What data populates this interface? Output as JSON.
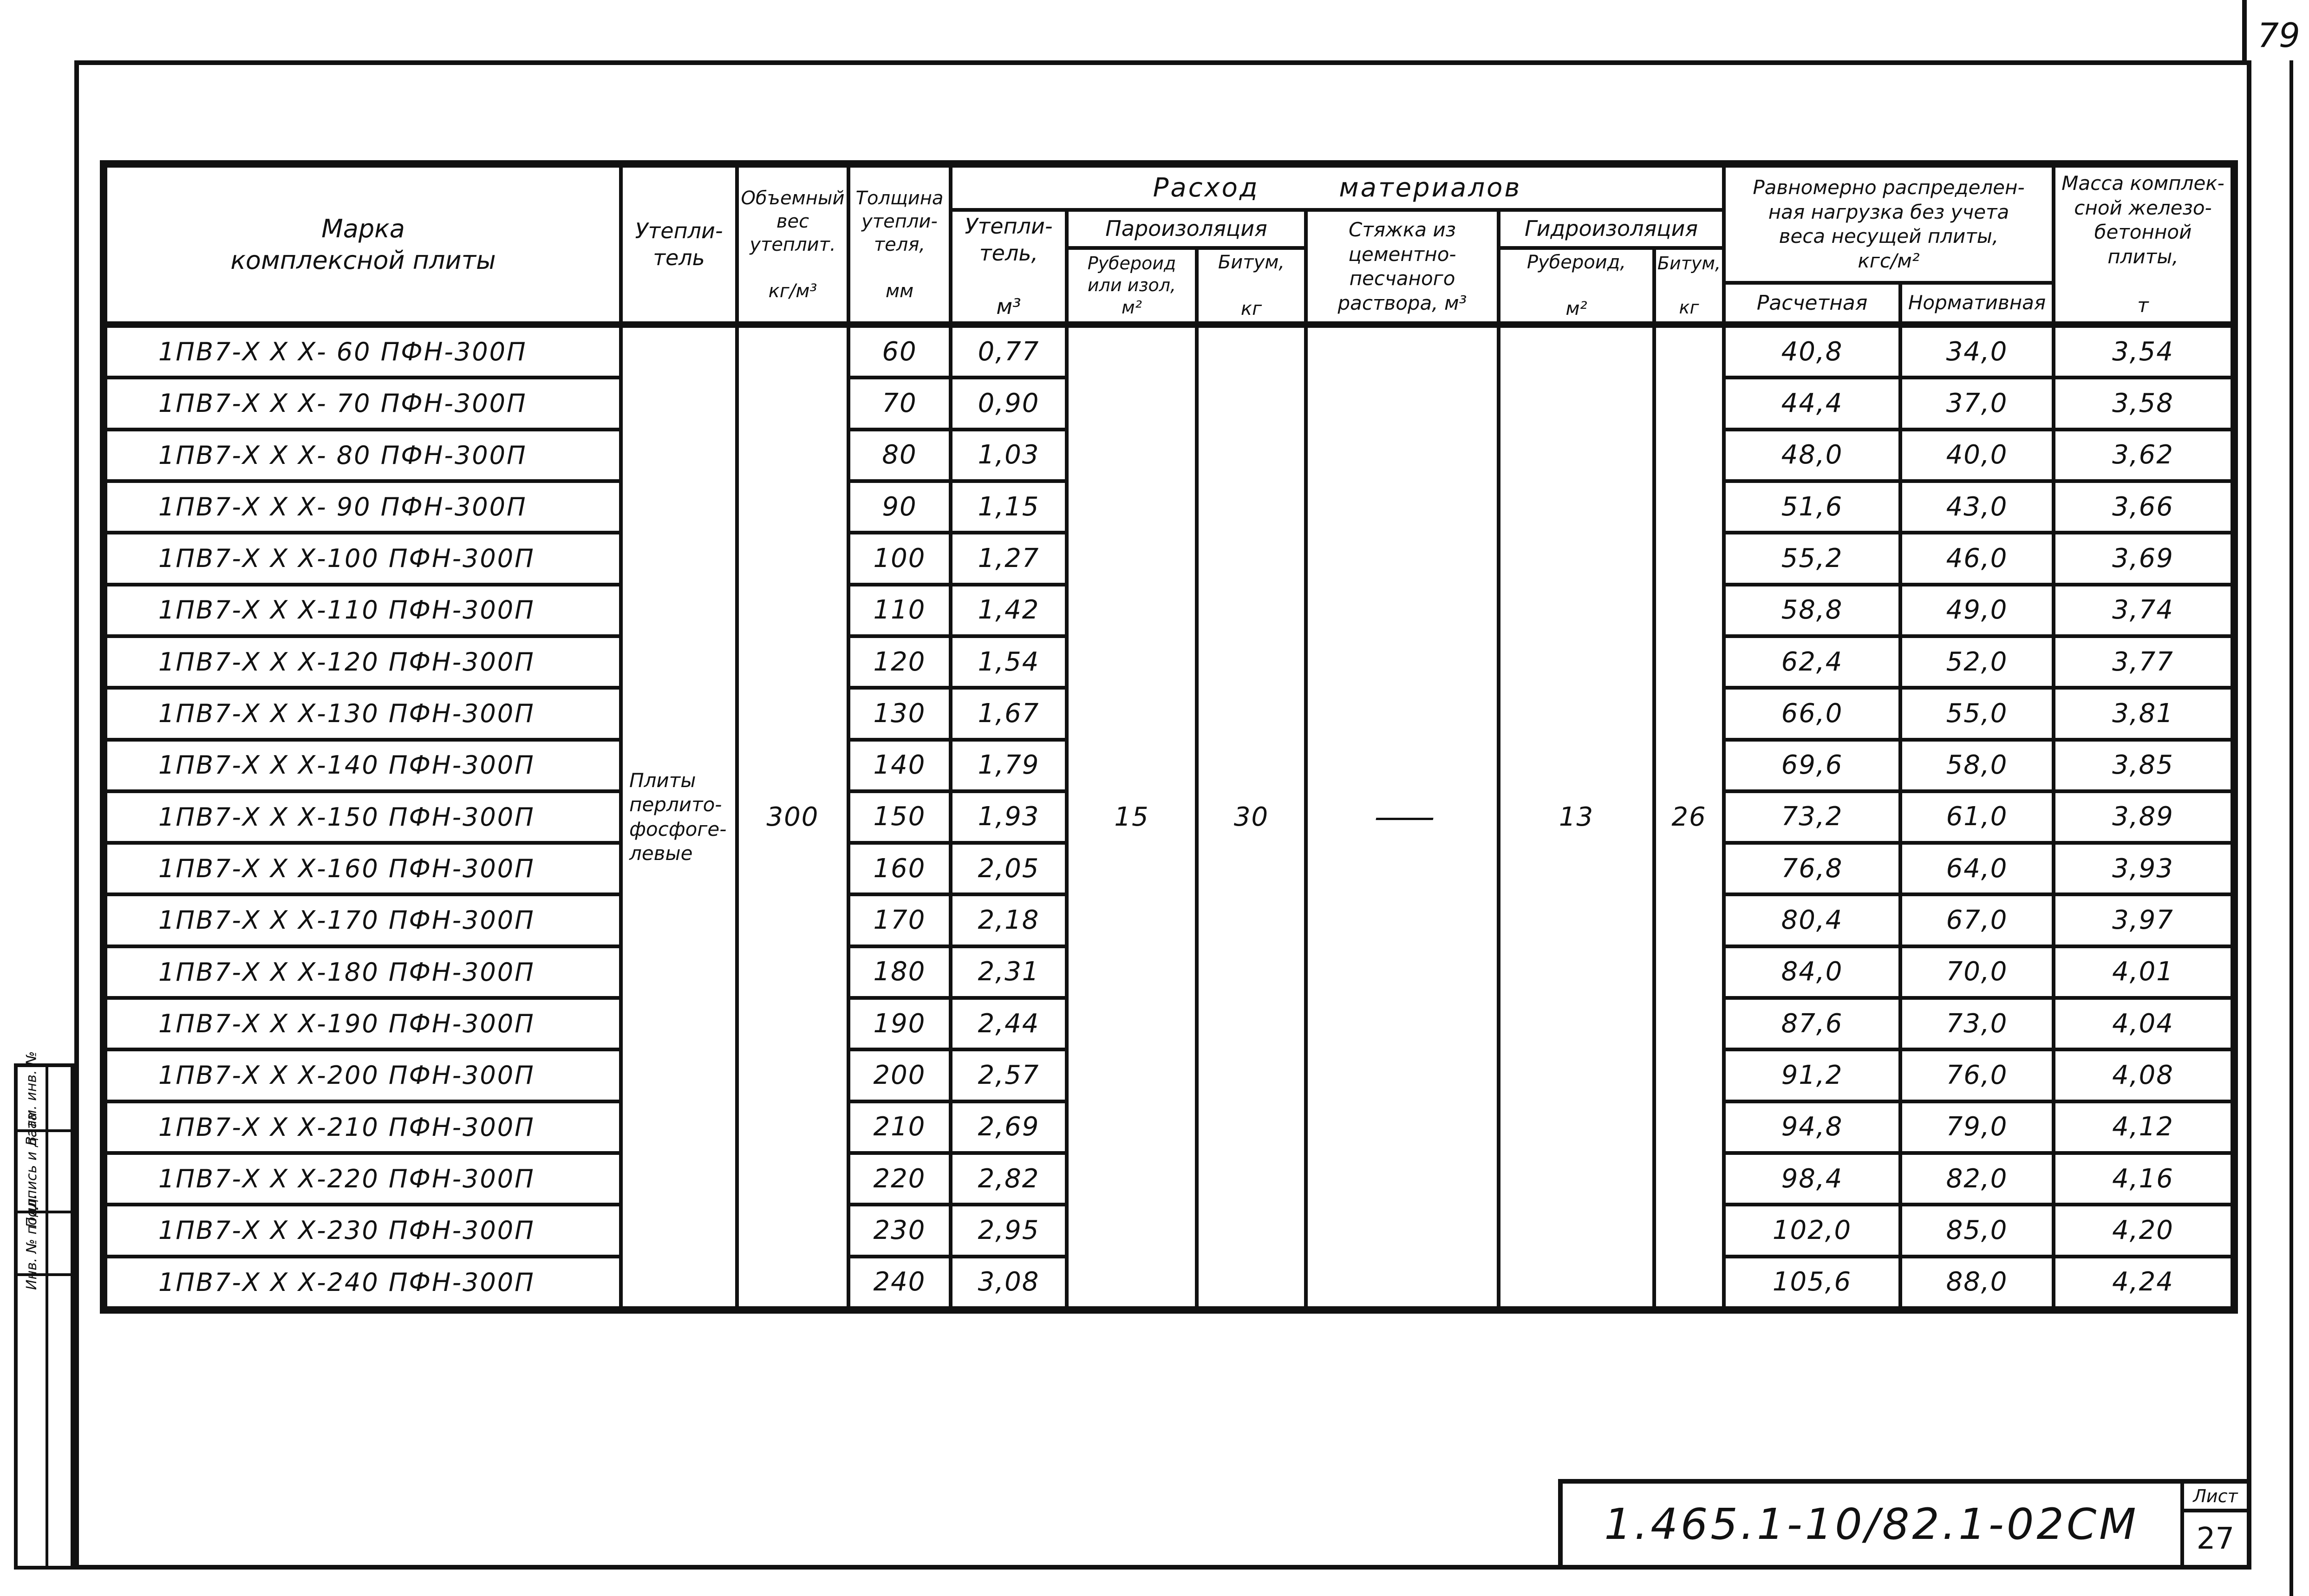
{
  "page": {
    "corner_number": "79",
    "doc_code": "1.465.1-10/82.1-02СМ",
    "sheet_label": "Лист",
    "sheet_number": "27"
  },
  "stamps": {
    "items": [
      {
        "label": "Взам. инв. №"
      },
      {
        "label": "Подпись и дата"
      },
      {
        "label": "Инв. № подл."
      }
    ]
  },
  "table": {
    "headers": {
      "mark": "Марка\nкомплексной плиты",
      "insulation": "Утепли-\nтель",
      "density": "Объемный\nвес\nутеплит.\n\nкг/м³",
      "thickness": "Толщина\nутепли-\nтеля,\n\nмм",
      "consumption": "Расход материалов",
      "insulation_volume": "Утепли-\nтель,\n\nм³",
      "vapor_barrier": "Пароизоляция",
      "ruberoid_izol": "Рубероид\nили изол,\nм²",
      "bitumen_vapor": "Битум,\n\nкг",
      "screed": "Стяжка из\nцементно-\nпесчаного\nраствора, м³",
      "waterproofing": "Гидроизоляция",
      "ruberoid": "Рубероид,\n\nм²",
      "bitumen_water": "Битум,\n\nкг",
      "load": "Равномерно распределен-\nная нагрузка без учета\nвеса несущей плиты,\nкгс/м²",
      "design": "Расчетная",
      "normative": "Нормативная",
      "mass": "Масса комплек-\nсной железо-\nбетонной\nплиты,\n\nт"
    },
    "merged": {
      "insulation_type": "Плиты\nперлито-\nфосфоге-\nлевые",
      "density": "300",
      "ruberoid_izol": "15",
      "bitumen_vapor": "30",
      "screed": "——",
      "ruberoid": "13",
      "bitumen_water": "26"
    },
    "rows": [
      {
        "mark": "1ПВ7-Х Х Х- 60 ПФН-300П",
        "thickness": "60",
        "volume": "0,77",
        "design_load": "40,8",
        "normative_load": "34,0",
        "mass": "3,54"
      },
      {
        "mark": "1ПВ7-Х Х Х- 70 ПФН-300П",
        "thickness": "70",
        "volume": "0,90",
        "design_load": "44,4",
        "normative_load": "37,0",
        "mass": "3,58"
      },
      {
        "mark": "1ПВ7-Х Х Х- 80 ПФН-300П",
        "thickness": "80",
        "volume": "1,03",
        "design_load": "48,0",
        "normative_load": "40,0",
        "mass": "3,62"
      },
      {
        "mark": "1ПВ7-Х Х Х- 90 ПФН-300П",
        "thickness": "90",
        "volume": "1,15",
        "design_load": "51,6",
        "normative_load": "43,0",
        "mass": "3,66"
      },
      {
        "mark": "1ПВ7-Х Х Х-100 ПФН-300П",
        "thickness": "100",
        "volume": "1,27",
        "design_load": "55,2",
        "normative_load": "46,0",
        "mass": "3,69"
      },
      {
        "mark": "1ПВ7-Х Х Х-110 ПФН-300П",
        "thickness": "110",
        "volume": "1,42",
        "design_load": "58,8",
        "normative_load": "49,0",
        "mass": "3,74"
      },
      {
        "mark": "1ПВ7-Х Х Х-120 ПФН-300П",
        "thickness": "120",
        "volume": "1,54",
        "design_load": "62,4",
        "normative_load": "52,0",
        "mass": "3,77"
      },
      {
        "mark": "1ПВ7-Х Х Х-130 ПФН-300П",
        "thickness": "130",
        "volume": "1,67",
        "design_load": "66,0",
        "normative_load": "55,0",
        "mass": "3,81"
      },
      {
        "mark": "1ПВ7-Х Х Х-140 ПФН-300П",
        "thickness": "140",
        "volume": "1,79",
        "design_load": "69,6",
        "normative_load": "58,0",
        "mass": "3,85"
      },
      {
        "mark": "1ПВ7-Х Х Х-150 ПФН-300П",
        "thickness": "150",
        "volume": "1,93",
        "design_load": "73,2",
        "normative_load": "61,0",
        "mass": "3,89"
      },
      {
        "mark": "1ПВ7-Х Х Х-160 ПФН-300П",
        "thickness": "160",
        "volume": "2,05",
        "design_load": "76,8",
        "normative_load": "64,0",
        "mass": "3,93"
      },
      {
        "mark": "1ПВ7-Х Х Х-170 ПФН-300П",
        "thickness": "170",
        "volume": "2,18",
        "design_load": "80,4",
        "normative_load": "67,0",
        "mass": "3,97"
      },
      {
        "mark": "1ПВ7-Х Х Х-180 ПФН-300П",
        "thickness": "180",
        "volume": "2,31",
        "design_load": "84,0",
        "normative_load": "70,0",
        "mass": "4,01"
      },
      {
        "mark": "1ПВ7-Х Х Х-190 ПФН-300П",
        "thickness": "190",
        "volume": "2,44",
        "design_load": "87,6",
        "normative_load": "73,0",
        "mass": "4,04"
      },
      {
        "mark": "1ПВ7-Х Х Х-200 ПФН-300П",
        "thickness": "200",
        "volume": "2,57",
        "design_load": "91,2",
        "normative_load": "76,0",
        "mass": "4,08"
      },
      {
        "mark": "1ПВ7-Х Х Х-210 ПФН-300П",
        "thickness": "210",
        "volume": "2,69",
        "design_load": "94,8",
        "normative_load": "79,0",
        "mass": "4,12"
      },
      {
        "mark": "1ПВ7-Х Х Х-220 ПФН-300П",
        "thickness": "220",
        "volume": "2,82",
        "design_load": "98,4",
        "normative_load": "82,0",
        "mass": "4,16"
      },
      {
        "mark": "1ПВ7-Х Х Х-230 ПФН-300П",
        "thickness": "230",
        "volume": "2,95",
        "design_load": "102,0",
        "normative_load": "85,0",
        "mass": "4,20"
      },
      {
        "mark": "1ПВ7-Х Х Х-240 ПФН-300П",
        "thickness": "240",
        "volume": "3,08",
        "design_load": "105,6",
        "normative_load": "88,0",
        "mass": "4,24"
      }
    ]
  }
}
